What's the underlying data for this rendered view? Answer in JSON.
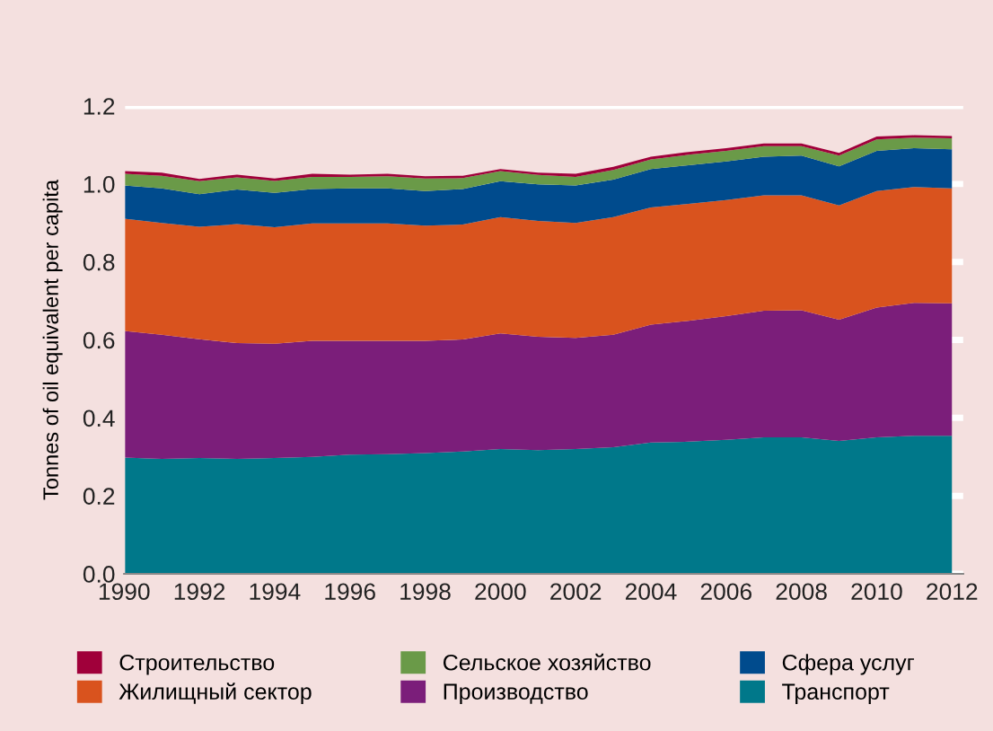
{
  "chart_data": {
    "type": "area",
    "stacked": true,
    "ylabel": "Tonnes of oil equivalent per capita",
    "x": [
      1990,
      1991,
      1992,
      1993,
      1994,
      1995,
      1996,
      1997,
      1998,
      1999,
      2000,
      2001,
      2002,
      2003,
      2004,
      2005,
      2006,
      2007,
      2008,
      2009,
      2010,
      2011,
      2012
    ],
    "series": [
      {
        "name": "Транспорт",
        "color": "#00788a",
        "values": [
          0.298,
          0.295,
          0.297,
          0.295,
          0.297,
          0.3,
          0.306,
          0.307,
          0.31,
          0.314,
          0.32,
          0.317,
          0.32,
          0.325,
          0.337,
          0.339,
          0.344,
          0.35,
          0.35,
          0.341,
          0.35,
          0.354,
          0.354
        ]
      },
      {
        "name": "Производство",
        "color": "#7b1e7a",
        "values": [
          0.325,
          0.318,
          0.305,
          0.297,
          0.293,
          0.298,
          0.292,
          0.291,
          0.288,
          0.287,
          0.297,
          0.291,
          0.285,
          0.288,
          0.302,
          0.31,
          0.317,
          0.325,
          0.326,
          0.311,
          0.333,
          0.341,
          0.34
        ]
      },
      {
        "name": "Жилищный сектор",
        "color": "#d9531e",
        "values": [
          0.288,
          0.287,
          0.288,
          0.305,
          0.299,
          0.301,
          0.301,
          0.301,
          0.295,
          0.295,
          0.298,
          0.297,
          0.295,
          0.302,
          0.301,
          0.3,
          0.298,
          0.296,
          0.295,
          0.293,
          0.299,
          0.297,
          0.295
        ]
      },
      {
        "name": "Сфера услуг",
        "color": "#004b8d",
        "values": [
          0.085,
          0.089,
          0.084,
          0.089,
          0.088,
          0.088,
          0.09,
          0.09,
          0.089,
          0.091,
          0.092,
          0.094,
          0.096,
          0.096,
          0.098,
          0.099,
          0.099,
          0.099,
          0.102,
          0.1,
          0.103,
          0.1,
          0.1
        ]
      },
      {
        "name": "Сельское хозяйство",
        "color": "#6a9a48",
        "values": [
          0.03,
          0.032,
          0.033,
          0.031,
          0.031,
          0.031,
          0.029,
          0.031,
          0.032,
          0.028,
          0.026,
          0.024,
          0.022,
          0.025,
          0.025,
          0.027,
          0.027,
          0.027,
          0.024,
          0.028,
          0.029,
          0.027,
          0.028
        ]
      },
      {
        "name": "Строительство",
        "color": "#a0003a",
        "values": [
          0.007,
          0.008,
          0.006,
          0.007,
          0.006,
          0.008,
          0.006,
          0.006,
          0.006,
          0.006,
          0.005,
          0.006,
          0.008,
          0.008,
          0.007,
          0.007,
          0.007,
          0.007,
          0.007,
          0.007,
          0.008,
          0.006,
          0.006
        ]
      }
    ],
    "xlim": [
      1990,
      2012.3
    ],
    "xticks": [
      1990,
      1992,
      1994,
      1996,
      1998,
      2000,
      2002,
      2004,
      2006,
      2008,
      2010,
      2012
    ],
    "ylim": [
      0,
      1.2
    ],
    "yticks": [
      {
        "value": 0,
        "label": "0.0"
      },
      0.2,
      0.4,
      0.6,
      0.8,
      {
        "value": 1,
        "label": "1.0"
      },
      1.2
    ],
    "grid": "y",
    "legend": "bottom"
  }
}
